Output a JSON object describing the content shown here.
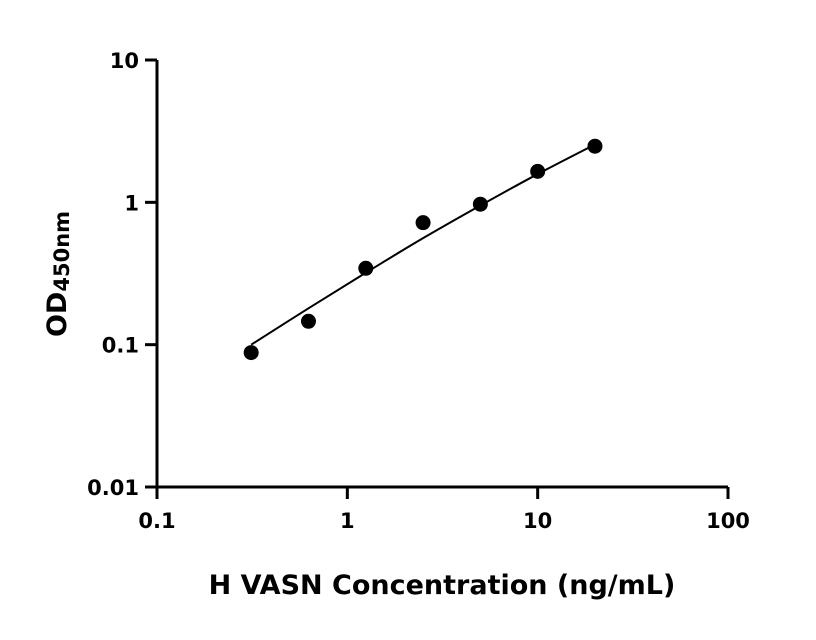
{
  "chart_data": {
    "type": "scatter",
    "title": "",
    "xlabel": "H VASN Concentration (ng/mL)",
    "ylabel": "OD",
    "ylabel_subscript": "450nm",
    "xscale": "log",
    "yscale": "log",
    "xlim": [
      0.1,
      100
    ],
    "ylim": [
      0.01,
      10
    ],
    "xticks": [
      "0.1",
      "1",
      "10",
      "100"
    ],
    "yticks": [
      "0.01",
      "0.1",
      "1",
      "10"
    ],
    "grid": false,
    "points": {
      "x": [
        0.3125,
        0.625,
        1.25,
        2.5,
        5,
        10,
        20
      ],
      "y": [
        0.088,
        0.146,
        0.344,
        0.72,
        0.97,
        1.65,
        2.48
      ]
    },
    "fit_curve": {
      "x": [
        0.3125,
        0.625,
        1.25,
        2.5,
        5,
        10,
        20
      ],
      "y": [
        0.1,
        0.18,
        0.32,
        0.56,
        0.95,
        1.58,
        2.55
      ]
    },
    "colors": {
      "marker": "#000000",
      "line": "#000000"
    }
  }
}
